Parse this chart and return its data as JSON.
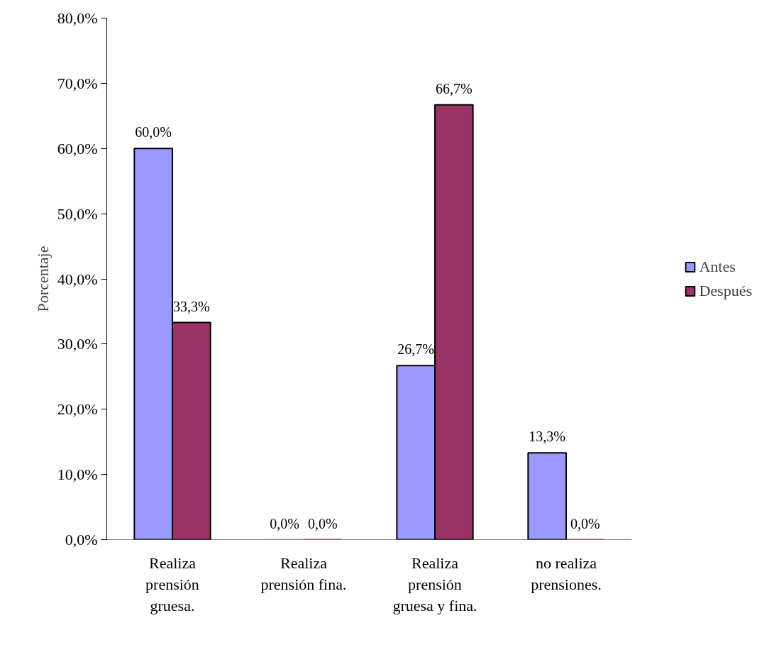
{
  "chart_data": {
    "type": "bar",
    "ylabel": "Porcentaje",
    "categories": [
      "Realiza prensión gruesa.",
      "Realiza prensión fina.",
      "Realiza prensión gruesa y fina.",
      "no realiza prensiones."
    ],
    "series": [
      {
        "name": "Antes",
        "color": "#9999ff",
        "values": [
          60.0,
          0.0,
          26.7,
          13.3
        ],
        "value_labels": [
          "60,0%",
          "0,0%",
          "26,7%",
          "13,3%"
        ]
      },
      {
        "name": "Después",
        "color": "#993366",
        "values": [
          33.3,
          0.0,
          66.7,
          0.0
        ],
        "value_labels": [
          "33,3%",
          "0,0%",
          "66,7%",
          "0,0%"
        ]
      }
    ],
    "ylim": [
      0,
      80
    ],
    "yticks": [
      {
        "value": 0,
        "label": "0,0%"
      },
      {
        "value": 10,
        "label": "10,0%"
      },
      {
        "value": 20,
        "label": "20,0%"
      },
      {
        "value": 30,
        "label": "30,0%"
      },
      {
        "value": 40,
        "label": "40,0%"
      },
      {
        "value": 50,
        "label": "50,0%"
      },
      {
        "value": 60,
        "label": "60,0%"
      },
      {
        "value": 70,
        "label": "70,0%"
      },
      {
        "value": 80,
        "label": "80,0%"
      }
    ],
    "grid": false,
    "legend": "right"
  }
}
